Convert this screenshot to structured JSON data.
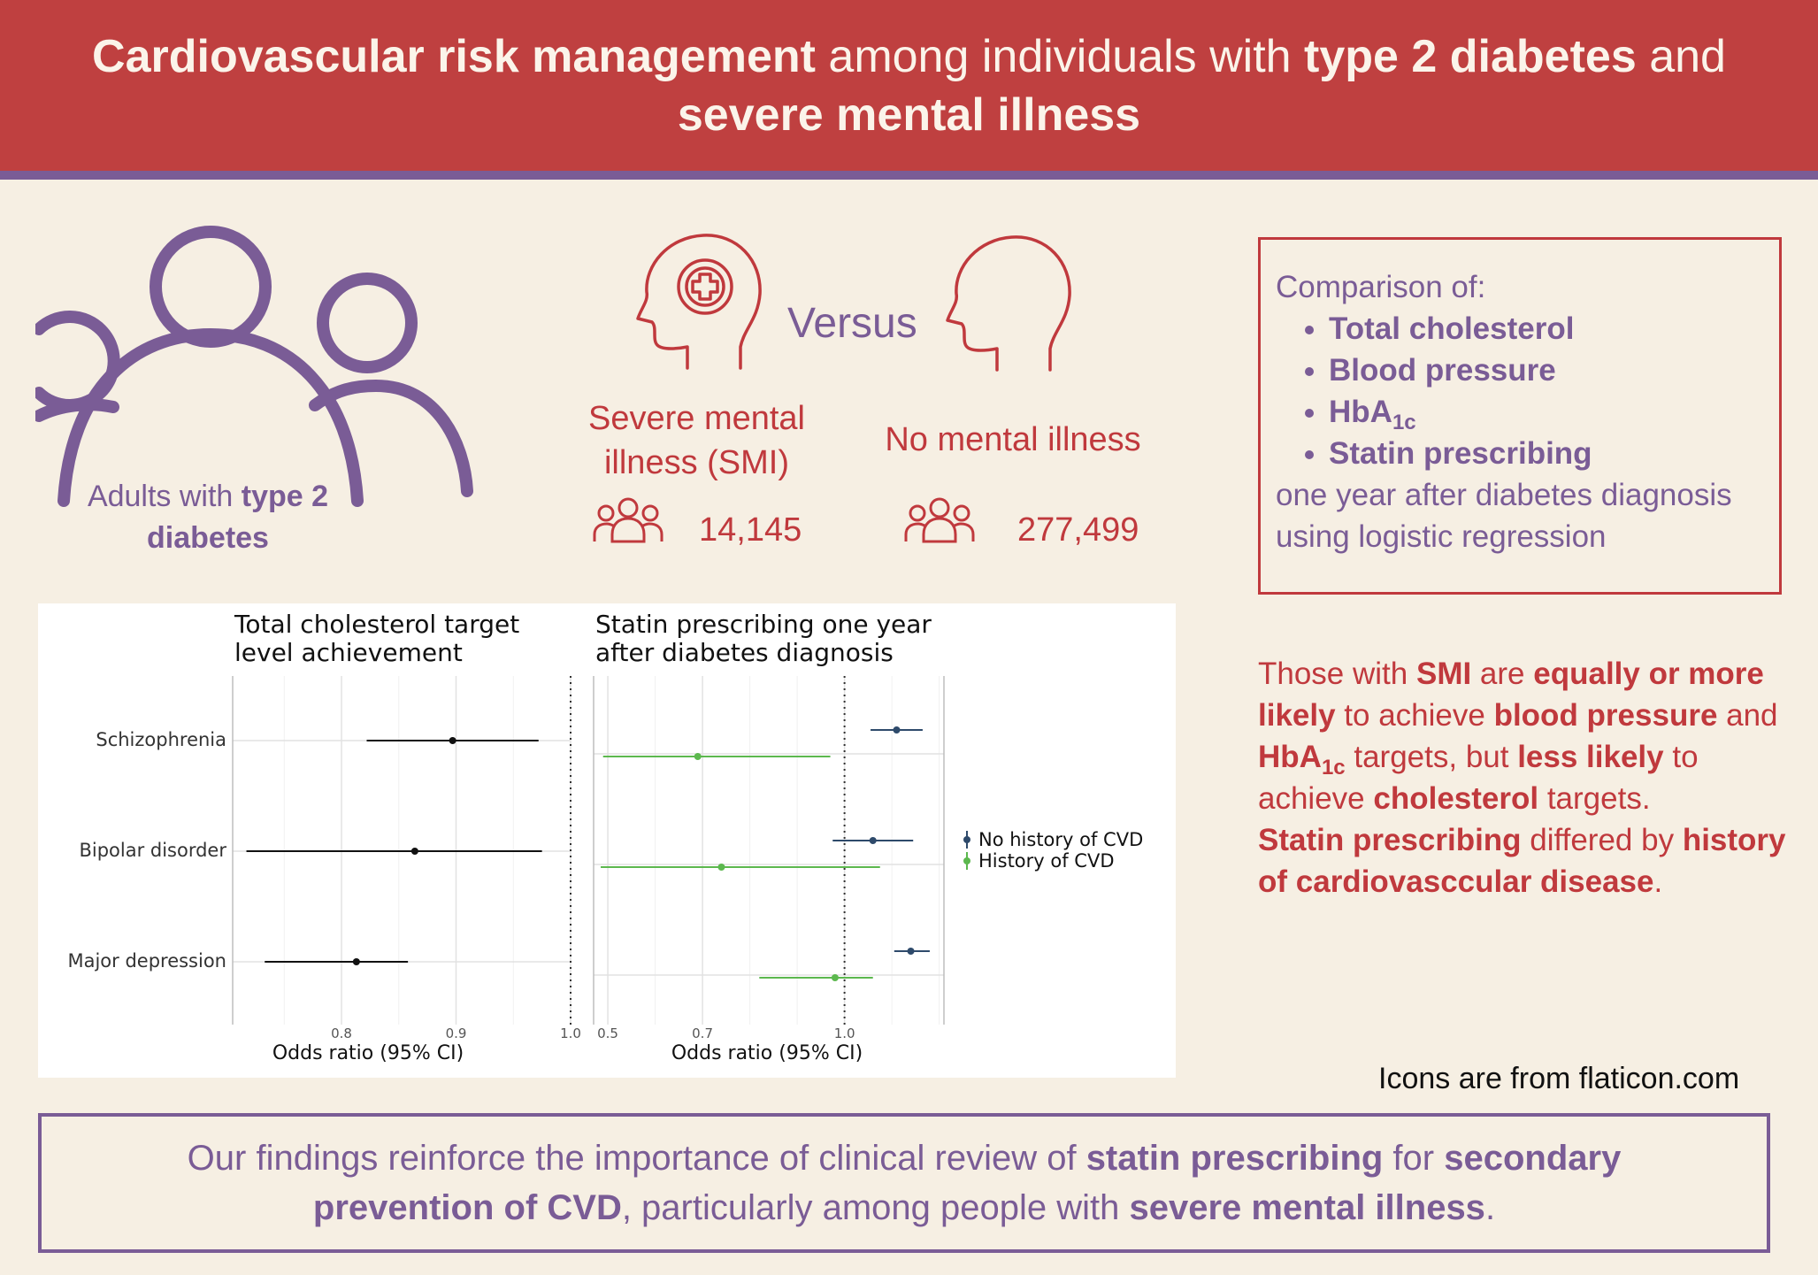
{
  "header": {
    "t1": "Cardiovascular risk management",
    "t2": " among individuals with ",
    "t3": "type 2 diabetes",
    "t4": " and ",
    "t5": "severe mental illness"
  },
  "population": {
    "caption_pre": "Adults with ",
    "caption_bold": "type 2 diabetes"
  },
  "comparison": {
    "versus": "Versus",
    "smi_label": "Severe mental illness (SMI)",
    "smi_count": "14,145",
    "nmi_label": "No mental illness",
    "nmi_count": "277,499"
  },
  "compare_box": {
    "intro": "Comparison of:",
    "items": [
      "Total cholesterol",
      "Blood pressure",
      "HbA",
      "Statin prescribing"
    ],
    "hba_sub": "1c",
    "outro": "one year after diabetes diagnosis using logistic regression"
  },
  "findings": {
    "p1": "Those with ",
    "p2": "SMI",
    "p3": " are ",
    "p4": "equally or more likely",
    "p5": " to achieve ",
    "p6": "blood pressure",
    "p7": " and ",
    "p8": "HbA",
    "p8sub": "1c",
    "p9": " targets, but ",
    "p10": "less likely",
    "p11": " to achieve ",
    "p12": "cholesterol",
    "p13": " targets.",
    "p14": "Statin prescribing",
    "p15": " differed by ",
    "p16": "history of cardiovasccular disease",
    "p17": "."
  },
  "credit": "Icons are from flaticon.com",
  "footer": {
    "f1": "Our findings reinforce the importance of clinical review of ",
    "f2": "statin prescribing",
    "f3": " for ",
    "f4": "secondary prevention of CVD",
    "f5": ", particularly among people with ",
    "f6": "severe mental illness",
    "f7": "."
  },
  "colors": {
    "header_red": "#bf4040",
    "accent_purple": "#7a5c96",
    "smi_red": "#c0393d",
    "series_no_cvd": "#2e4a6b",
    "series_cvd": "#5cb84e"
  },
  "chart_data": [
    {
      "type": "scatter",
      "subtype": "forest",
      "title": "Total cholesterol target level achievement",
      "xlabel": "Odds ratio (95% CI)",
      "xlim": [
        0.705,
        1.0
      ],
      "xticks": [
        "0.8",
        "0.9",
        "1.0"
      ],
      "xtick_values": [
        0.8,
        0.9,
        1.0
      ],
      "reference_line": 1.0,
      "categories": [
        "Schizophrenia",
        "Bipolar disorder",
        "Major depression"
      ],
      "series": [
        {
          "color": "#111111",
          "points": [
            {
              "category": "Schizophrenia",
              "or": 0.897,
              "lo": 0.822,
              "hi": 0.972
            },
            {
              "category": "Bipolar disorder",
              "or": 0.864,
              "lo": 0.717,
              "hi": 0.975
            },
            {
              "category": "Major depression",
              "or": 0.813,
              "lo": 0.733,
              "hi": 0.858
            }
          ]
        }
      ]
    },
    {
      "type": "scatter",
      "subtype": "forest",
      "title": "Statin prescribing one year after diabetes diagnosis",
      "xlabel": "Odds ratio (95% CI)",
      "xlim": [
        0.47,
        1.21
      ],
      "xticks": [
        "0.5",
        "0.7",
        "1.0"
      ],
      "xtick_values": [
        0.5,
        0.7,
        1.0
      ],
      "reference_line": 1.0,
      "categories": [
        "Schizophrenia",
        "Bipolar disorder",
        "Major depression"
      ],
      "legend": "right",
      "series": [
        {
          "name": "No history of CVD",
          "color": "#2e4a6b",
          "points": [
            {
              "category": "Schizophrenia",
              "or": 1.11,
              "lo": 1.055,
              "hi": 1.165
            },
            {
              "category": "Bipolar disorder",
              "or": 1.06,
              "lo": 0.975,
              "hi": 1.145
            },
            {
              "category": "Major depression",
              "or": 1.14,
              "lo": 1.105,
              "hi": 1.18
            }
          ]
        },
        {
          "name": "History of CVD",
          "color": "#5cb84e",
          "points": [
            {
              "category": "Schizophrenia",
              "or": 0.69,
              "lo": 0.49,
              "hi": 0.97
            },
            {
              "category": "Bipolar disorder",
              "or": 0.74,
              "lo": 0.485,
              "hi": 1.075
            },
            {
              "category": "Major depression",
              "or": 0.98,
              "lo": 0.82,
              "hi": 1.06
            }
          ]
        }
      ]
    }
  ]
}
